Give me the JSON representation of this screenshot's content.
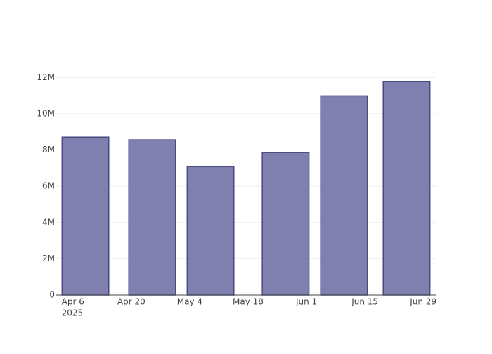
{
  "chart_data": {
    "type": "bar",
    "x": [
      "2025-04-09",
      "2025-04-25",
      "2025-05-09",
      "2025-05-27",
      "2025-06-10",
      "2025-06-25"
    ],
    "values": [
      8710000,
      8560000,
      7080000,
      7860000,
      10990000,
      11770000
    ],
    "color": "#7f7fb0",
    "edge_color": "#4a4a82",
    "xlim": [
      "2025-04-02",
      "2025-07-02"
    ],
    "xticks": [
      {
        "value": "2025-04-06",
        "label": "Apr 6"
      },
      {
        "value": "2025-04-20",
        "label": "Apr 20"
      },
      {
        "value": "2025-05-04",
        "label": "May 4"
      },
      {
        "value": "2025-05-18",
        "label": "May 18"
      },
      {
        "value": "2025-06-01",
        "label": "Jun 1"
      },
      {
        "value": "2025-06-15",
        "label": "Jun 15"
      },
      {
        "value": "2025-06-29",
        "label": "Jun 29"
      }
    ],
    "x_year_label": "2025",
    "bar_width_days": 11.2,
    "ylim": [
      0,
      12400000
    ],
    "yticks": [
      0,
      {
        "value": 2000000,
        "label": "2M"
      },
      {
        "value": 4000000,
        "label": "4M"
      },
      {
        "value": 6000000,
        "label": "6M"
      },
      {
        "value": 8000000,
        "label": "8M"
      },
      {
        "value": 10000000,
        "label": "10M"
      },
      {
        "value": 12000000,
        "label": "12M"
      }
    ],
    "grid": true
  }
}
